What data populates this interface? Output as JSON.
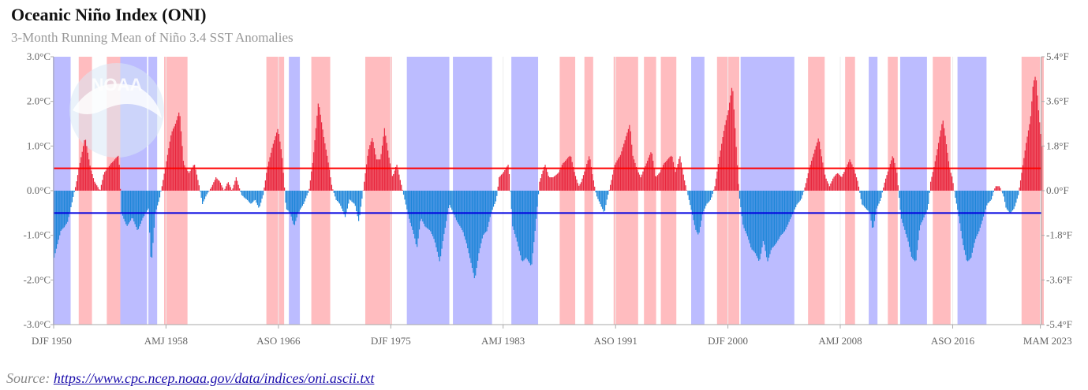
{
  "header": {
    "title": "Oceanic Niño Index (ONI)",
    "subtitle": "3-Month Running Mean of Niño 3.4 SST Anomalies"
  },
  "footer": {
    "source_label": "Source:",
    "source_url": "https://www.cpc.ncep.noaa.gov/data/indices/oni.ascii.txt"
  },
  "logo": {
    "text": "NOAA"
  },
  "colors": {
    "warm_bar": "#e8283f",
    "cool_bar": "#1e86d9",
    "warm_band": "#ffbcbf",
    "cool_band": "#bcbcff",
    "el_nino_threshold_line": "#ff0000",
    "la_nina_threshold_line": "#0000e0"
  },
  "chart_data": {
    "type": "bar",
    "title": "Oceanic Niño Index (ONI)",
    "subtitle": "3-Month Running Mean of Niño 3.4 SST Anomalies",
    "start_year": 1950,
    "y_left": {
      "ticks": [
        "3.0°C",
        "2.0°C",
        "1.0°C",
        "0.0°C",
        "-1.0°C",
        "-2.0°C",
        "-3.0°C"
      ],
      "range": [
        -3,
        3
      ]
    },
    "y_right": {
      "ticks": [
        "5.4°F",
        "3.6°F",
        "1.8°F",
        "0.0°F",
        "-1.8°F",
        "-3.6°F",
        "-5.4°F"
      ]
    },
    "x_ticks": [
      {
        "label": "DJF 1950",
        "year": 1950.0
      },
      {
        "label": "AMJ 1958",
        "year": 1958.33
      },
      {
        "label": "ASO 1966",
        "year": 1966.67
      },
      {
        "label": "DJF 1975",
        "year": 1975.0
      },
      {
        "label": "AMJ 1983",
        "year": 1983.33
      },
      {
        "label": "ASO 1991",
        "year": 1991.67
      },
      {
        "label": "DJF 2000",
        "year": 2000.0
      },
      {
        "label": "AMJ 2008",
        "year": 2008.33
      },
      {
        "label": "ASO 2016",
        "year": 2016.67
      },
      {
        "label": "MAM 2023",
        "year": 2023.17
      }
    ],
    "thresholds": [
      0.5,
      -0.5
    ],
    "x_range": [
      1950.0,
      2023.25
    ],
    "grid": true,
    "anchors": [
      [
        1950.0,
        -1.5
      ],
      [
        1950.5,
        -0.9
      ],
      [
        1950.8,
        -0.8
      ],
      [
        1951.0,
        -0.7
      ],
      [
        1951.3,
        -0.3
      ],
      [
        1951.6,
        0.1
      ],
      [
        1951.9,
        0.6
      ],
      [
        1952.3,
        1.2
      ],
      [
        1952.7,
        0.5
      ],
      [
        1953.0,
        0.2
      ],
      [
        1953.4,
        0.0
      ],
      [
        1953.7,
        0.4
      ],
      [
        1954.2,
        0.6
      ],
      [
        1954.5,
        0.7
      ],
      [
        1954.8,
        0.8
      ],
      [
        1955.0,
        -0.5
      ],
      [
        1955.4,
        -0.8
      ],
      [
        1955.8,
        -0.6
      ],
      [
        1956.2,
        -0.9
      ],
      [
        1956.6,
        -0.6
      ],
      [
        1957.0,
        -0.4
      ],
      [
        1957.2,
        -1.7
      ],
      [
        1957.5,
        -0.5
      ],
      [
        1957.8,
        -0.2
      ],
      [
        1958.0,
        0.1
      ],
      [
        1958.3,
        0.6
      ],
      [
        1958.7,
        1.3
      ],
      [
        1959.0,
        1.5
      ],
      [
        1959.3,
        1.8
      ],
      [
        1959.6,
        0.6
      ],
      [
        1960.0,
        0.4
      ],
      [
        1960.4,
        0.6
      ],
      [
        1960.7,
        0.2
      ],
      [
        1961.0,
        -0.3
      ],
      [
        1961.3,
        -0.1
      ],
      [
        1961.7,
        0.1
      ],
      [
        1962.0,
        0.3
      ],
      [
        1962.3,
        0.2
      ],
      [
        1962.6,
        0.0
      ],
      [
        1962.9,
        0.2
      ],
      [
        1963.2,
        0.0
      ],
      [
        1963.5,
        0.3
      ],
      [
        1963.9,
        -0.1
      ],
      [
        1964.3,
        -0.2
      ],
      [
        1964.6,
        -0.3
      ],
      [
        1964.9,
        -0.2
      ],
      [
        1965.2,
        -0.4
      ],
      [
        1965.5,
        -0.1
      ],
      [
        1965.8,
        0.5
      ],
      [
        1966.2,
        1.0
      ],
      [
        1966.6,
        1.4
      ],
      [
        1966.9,
        0.8
      ],
      [
        1967.2,
        -0.4
      ],
      [
        1967.5,
        -0.5
      ],
      [
        1967.8,
        -0.8
      ],
      [
        1968.1,
        -0.5
      ],
      [
        1968.5,
        -0.3
      ],
      [
        1968.9,
        0.0
      ],
      [
        1969.2,
        0.7
      ],
      [
        1969.6,
        2.0
      ],
      [
        1970.0,
        1.2
      ],
      [
        1970.3,
        0.7
      ],
      [
        1970.6,
        0.1
      ],
      [
        1970.9,
        -0.2
      ],
      [
        1971.2,
        -0.3
      ],
      [
        1971.6,
        -0.6
      ],
      [
        1971.9,
        -0.2
      ],
      [
        1972.3,
        -0.3
      ],
      [
        1972.6,
        -0.7
      ],
      [
        1973.0,
        0.2
      ],
      [
        1973.3,
        0.9
      ],
      [
        1973.6,
        1.2
      ],
      [
        1973.9,
        0.7
      ],
      [
        1974.2,
        0.7
      ],
      [
        1974.5,
        1.4
      ],
      [
        1974.8,
        0.8
      ],
      [
        1975.1,
        0.3
      ],
      [
        1975.4,
        0.6
      ],
      [
        1975.7,
        0.2
      ],
      [
        1976.0,
        -0.2
      ],
      [
        1976.3,
        -0.6
      ],
      [
        1976.7,
        -1.0
      ],
      [
        1976.9,
        -1.3
      ],
      [
        1977.2,
        -0.6
      ],
      [
        1977.5,
        -0.8
      ],
      [
        1977.9,
        -0.9
      ],
      [
        1978.2,
        -1.1
      ],
      [
        1978.6,
        -1.6
      ],
      [
        1978.9,
        -1.0
      ],
      [
        1979.3,
        -0.3
      ],
      [
        1979.6,
        -0.5
      ],
      [
        1979.9,
        -0.7
      ],
      [
        1980.3,
        -0.9
      ],
      [
        1980.6,
        -1.2
      ],
      [
        1980.9,
        -1.6
      ],
      [
        1981.2,
        -2.0
      ],
      [
        1981.5,
        -1.4
      ],
      [
        1981.8,
        -1.0
      ],
      [
        1982.1,
        -0.9
      ],
      [
        1982.4,
        -0.5
      ],
      [
        1982.8,
        -0.2
      ],
      [
        1983.0,
        0.3
      ],
      [
        1983.3,
        0.4
      ],
      [
        1983.7,
        0.6
      ],
      [
        1984.0,
        -0.8
      ],
      [
        1984.3,
        -1.1
      ],
      [
        1984.7,
        -1.6
      ],
      [
        1985.0,
        -1.5
      ],
      [
        1985.4,
        -1.7
      ],
      [
        1985.7,
        -0.8
      ],
      [
        1986.0,
        0.2
      ],
      [
        1986.4,
        0.6
      ],
      [
        1986.7,
        0.3
      ],
      [
        1987.0,
        0.3
      ],
      [
        1987.4,
        0.4
      ],
      [
        1987.7,
        0.6
      ],
      [
        1988.0,
        0.7
      ],
      [
        1988.3,
        0.8
      ],
      [
        1988.6,
        0.4
      ],
      [
        1988.9,
        0.1
      ],
      [
        1989.1,
        0.2
      ],
      [
        1989.4,
        0.5
      ],
      [
        1989.7,
        0.8
      ],
      [
        1989.9,
        0.4
      ],
      [
        1990.2,
        -0.1
      ],
      [
        1990.5,
        -0.3
      ],
      [
        1990.8,
        -0.5
      ],
      [
        1991.0,
        -0.2
      ],
      [
        1991.3,
        0.2
      ],
      [
        1991.6,
        0.6
      ],
      [
        1992.0,
        0.8
      ],
      [
        1992.4,
        1.2
      ],
      [
        1992.7,
        1.5
      ],
      [
        1992.9,
        0.8
      ],
      [
        1993.2,
        0.5
      ],
      [
        1993.5,
        0.3
      ],
      [
        1993.9,
        0.6
      ],
      [
        1994.3,
        0.9
      ],
      [
        1994.6,
        0.3
      ],
      [
        1994.9,
        0.4
      ],
      [
        1995.2,
        0.6
      ],
      [
        1995.5,
        0.7
      ],
      [
        1995.8,
        0.8
      ],
      [
        1996.1,
        0.4
      ],
      [
        1996.4,
        0.8
      ],
      [
        1996.7,
        0.3
      ],
      [
        1997.0,
        -0.1
      ],
      [
        1997.3,
        -0.5
      ],
      [
        1997.6,
        -0.9
      ],
      [
        1997.8,
        -1.0
      ],
      [
        1998.1,
        -0.5
      ],
      [
        1998.4,
        -0.3
      ],
      [
        1998.7,
        -0.2
      ],
      [
        1999.0,
        0.1
      ],
      [
        1999.3,
        0.7
      ],
      [
        1999.7,
        1.4
      ],
      [
        2000.0,
        1.8
      ],
      [
        2000.3,
        2.4
      ],
      [
        2000.5,
        1.4
      ],
      [
        2000.8,
        -0.1
      ],
      [
        2001.1,
        -0.8
      ],
      [
        2001.4,
        -1.0
      ],
      [
        2001.7,
        -1.3
      ],
      [
        2002.0,
        -1.4
      ],
      [
        2002.3,
        -1.6
      ],
      [
        2002.6,
        -1.1
      ],
      [
        2002.9,
        -1.6
      ],
      [
        2003.2,
        -1.3
      ],
      [
        2003.5,
        -1.2
      ],
      [
        2003.9,
        -1.0
      ],
      [
        2004.2,
        -0.9
      ],
      [
        2004.5,
        -0.7
      ],
      [
        2004.8,
        -0.5
      ],
      [
        2005.1,
        -0.3
      ],
      [
        2005.4,
        -0.2
      ],
      [
        2005.7,
        0.1
      ],
      [
        2006.0,
        0.5
      ],
      [
        2006.3,
        0.8
      ],
      [
        2006.7,
        1.2
      ],
      [
        2006.9,
        0.8
      ],
      [
        2007.2,
        0.3
      ],
      [
        2007.5,
        0.1
      ],
      [
        2007.8,
        0.3
      ],
      [
        2008.1,
        0.4
      ],
      [
        2008.4,
        0.3
      ],
      [
        2008.7,
        0.5
      ],
      [
        2009.0,
        0.7
      ],
      [
        2009.3,
        0.5
      ],
      [
        2009.6,
        0.2
      ],
      [
        2009.9,
        -0.3
      ],
      [
        2010.2,
        -0.4
      ],
      [
        2010.5,
        -0.5
      ],
      [
        2010.7,
        -0.9
      ],
      [
        2011.0,
        -0.4
      ],
      [
        2011.3,
        -0.2
      ],
      [
        2011.6,
        0.2
      ],
      [
        2011.9,
        0.5
      ],
      [
        2012.2,
        0.8
      ],
      [
        2012.5,
        0.4
      ],
      [
        2012.8,
        -0.6
      ],
      [
        2013.0,
        -0.8
      ],
      [
        2013.3,
        -1.1
      ],
      [
        2013.6,
        -1.5
      ],
      [
        2013.9,
        -1.6
      ],
      [
        2014.2,
        -0.8
      ],
      [
        2014.5,
        -0.6
      ],
      [
        2014.8,
        -0.4
      ],
      [
        2015.0,
        0.2
      ],
      [
        2015.3,
        0.6
      ],
      [
        2015.6,
        1.1
      ],
      [
        2015.9,
        1.6
      ],
      [
        2016.1,
        1.2
      ],
      [
        2016.4,
        0.5
      ],
      [
        2016.6,
        0.3
      ],
      [
        2016.8,
        -0.1
      ],
      [
        2017.1,
        -0.6
      ],
      [
        2017.4,
        -1.2
      ],
      [
        2017.7,
        -1.6
      ],
      [
        2018.0,
        -1.5
      ],
      [
        2018.3,
        -1.1
      ],
      [
        2018.6,
        -0.9
      ],
      [
        2018.9,
        -0.6
      ],
      [
        2019.2,
        -0.3
      ],
      [
        2019.5,
        -0.2
      ],
      [
        2019.8,
        0.1
      ],
      [
        2020.1,
        0.1
      ],
      [
        2020.4,
        -0.1
      ],
      [
        2020.6,
        -0.4
      ],
      [
        2020.9,
        -0.5
      ],
      [
        2021.2,
        -0.4
      ],
      [
        2021.5,
        -0.1
      ],
      [
        2021.8,
        0.5
      ],
      [
        2022.1,
        1.1
      ],
      [
        2022.4,
        1.6
      ],
      [
        2022.6,
        2.4
      ],
      [
        2022.8,
        2.6
      ],
      [
        2023.0,
        1.8
      ],
      [
        2023.25,
        1.0
      ]
    ],
    "bands": []
  }
}
